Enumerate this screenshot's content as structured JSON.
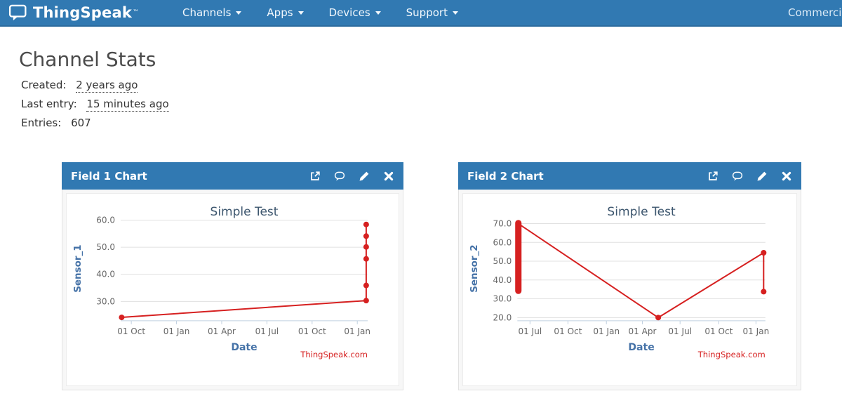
{
  "navbar": {
    "brand": "ThingSpeak",
    "brand_tm": "™",
    "items": [
      {
        "label": "Channels",
        "has_caret": true
      },
      {
        "label": "Apps",
        "has_caret": true
      },
      {
        "label": "Devices",
        "has_caret": true
      },
      {
        "label": "Support",
        "has_caret": true
      }
    ],
    "right_label": "Commercial Use",
    "bg_color": "#3179b2"
  },
  "page": {
    "title": "Channel Stats",
    "created": {
      "label": "Created:",
      "value": "2 years ago"
    },
    "last_entry": {
      "label": "Last entry:",
      "value": "15 minutes ago"
    },
    "entries": {
      "label": "Entries:",
      "value": "607"
    }
  },
  "panels": [
    {
      "title": "Field 1 Chart",
      "icons": [
        "external-link-icon",
        "comment-icon",
        "pencil-icon",
        "close-icon"
      ]
    },
    {
      "title": "Field 2 Chart",
      "icons": [
        "external-link-icon",
        "comment-icon",
        "pencil-icon",
        "close-icon"
      ]
    }
  ],
  "chart_data": [
    {
      "type": "line",
      "panel": "Field 1 Chart",
      "title": "Simple Test",
      "xlabel": "Date",
      "ylabel": "Sensor_1",
      "credit": "ThingSpeak.com",
      "series_color": "#d62020",
      "grid": true,
      "legend": "none",
      "ylim": [
        23.0,
        61.2
      ],
      "y_ticks": [
        30,
        40,
        50,
        60
      ],
      "x_ticks": [
        {
          "pos": 0.043,
          "label": "01 Oct"
        },
        {
          "pos": 0.226,
          "label": "01 Jan"
        },
        {
          "pos": 0.409,
          "label": "01 Apr"
        },
        {
          "pos": 0.592,
          "label": "01 Jul"
        },
        {
          "pos": 0.775,
          "label": "01 Oct"
        },
        {
          "pos": 0.958,
          "label": "01 Jan"
        }
      ],
      "points": [
        {
          "x": 0.004,
          "y": 24.1
        },
        {
          "x": 0.994,
          "y": 30.3
        },
        {
          "x": 0.994,
          "y": 35.9
        },
        {
          "x": 0.994,
          "y": 45.7
        },
        {
          "x": 0.994,
          "y": 50.1
        },
        {
          "x": 0.994,
          "y": 54.1
        },
        {
          "x": 0.994,
          "y": 58.4
        }
      ]
    },
    {
      "type": "line",
      "panel": "Field 2 Chart",
      "title": "Simple Test",
      "xlabel": "Date",
      "ylabel": "Sensor_2",
      "credit": "ThingSpeak.com",
      "series_color": "#d62020",
      "grid": true,
      "legend": "none",
      "ylim": [
        18.5,
        73.6
      ],
      "y_ticks": [
        20,
        30,
        40,
        50,
        60,
        70
      ],
      "x_ticks": [
        {
          "pos": 0.051,
          "label": "01 Jul"
        },
        {
          "pos": 0.204,
          "label": "01 Oct"
        },
        {
          "pos": 0.359,
          "label": "01 Jan"
        },
        {
          "pos": 0.504,
          "label": "01 Apr"
        },
        {
          "pos": 0.656,
          "label": "01 Jul"
        },
        {
          "pos": 0.812,
          "label": "01 Oct"
        },
        {
          "pos": 0.962,
          "label": "01 Jan"
        }
      ],
      "cluster": {
        "x": 0.004,
        "y_min": 34.2,
        "y_max": 70.3,
        "note": "many overlapping points"
      },
      "points": [
        {
          "x": 0.004,
          "y": 70.0
        },
        {
          "x": 0.568,
          "y": 20.0
        },
        {
          "x": 0.993,
          "y": 54.5
        },
        {
          "x": 0.993,
          "y": 33.8
        }
      ]
    }
  ],
  "colors": {
    "navbar_bg": "#3179b2",
    "panel_header_bg": "#3179b2",
    "series_red": "#d62020",
    "grid_line": "#e0e0e0",
    "axis_line": "#c0d0e0",
    "tick_label": "#666666",
    "chart_title": "#3e576f",
    "axis_title": "#4572a7",
    "credit": "#d62020",
    "heading_text": "#4a4a4a",
    "body_text": "#333333"
  }
}
